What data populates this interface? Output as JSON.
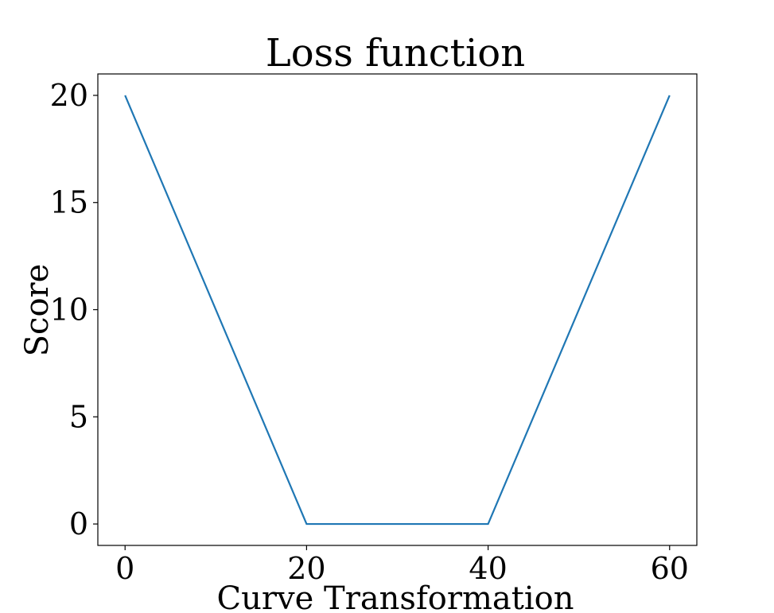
{
  "chart_data": {
    "type": "line",
    "title": "Loss function",
    "xlabel": "Curve Transformation",
    "ylabel": "Score",
    "xlim": [
      -3,
      63
    ],
    "ylim": [
      -1,
      21
    ],
    "x_ticks": [
      0,
      20,
      40,
      60
    ],
    "y_ticks": [
      0,
      5,
      10,
      15,
      20
    ],
    "grid": false,
    "series": [
      {
        "color": "#1f77b4",
        "x": [
          0,
          20,
          40,
          60
        ],
        "y": [
          20,
          0,
          0,
          20
        ]
      }
    ]
  }
}
